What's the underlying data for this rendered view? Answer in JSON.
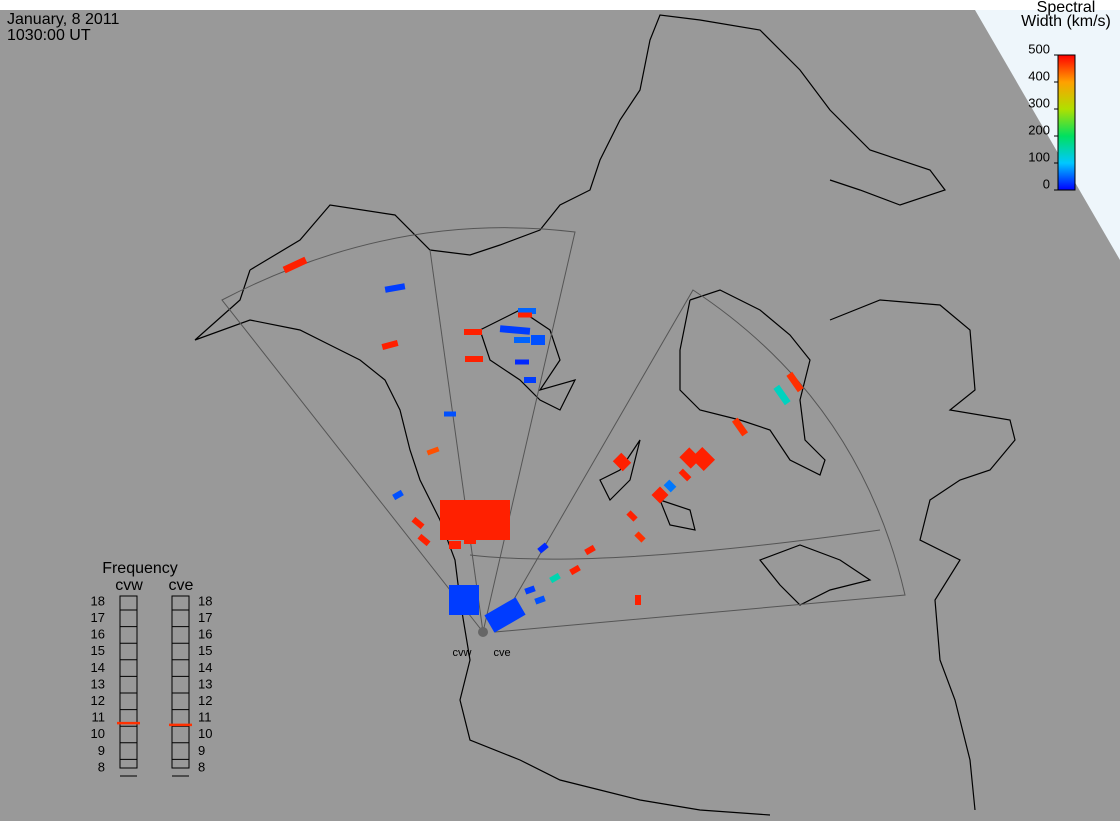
{
  "header": {
    "date": "January, 8 2011",
    "time": "1030:00 UT"
  },
  "colorbar": {
    "title": [
      "Spectral",
      "Width (km/s)"
    ],
    "range": [
      0,
      500
    ],
    "ticks": [
      0,
      100,
      200,
      300,
      400,
      500
    ]
  },
  "frequency": {
    "title": "Frequency",
    "range": [
      8,
      18
    ],
    "ticks": [
      8,
      9,
      10,
      11,
      12,
      13,
      14,
      15,
      16,
      17,
      18
    ],
    "radars": [
      {
        "name": "cvw",
        "value": 10.7
      },
      {
        "name": "cve",
        "value": 10.6
      }
    ]
  },
  "echoes": [
    480,
    30,
    480,
    40,
    450,
    40,
    50,
    480,
    30,
    50,
    40,
    480,
    480,
    20,
    30,
    140,
    470,
    470,
    480,
    480,
    480,
    480,
    480,
    480,
    480,
    480,
    20,
    30,
    30,
    480,
    480,
    150,
    480,
    470,
    30,
    40,
    480,
    480,
    60,
    480
  ]
}
